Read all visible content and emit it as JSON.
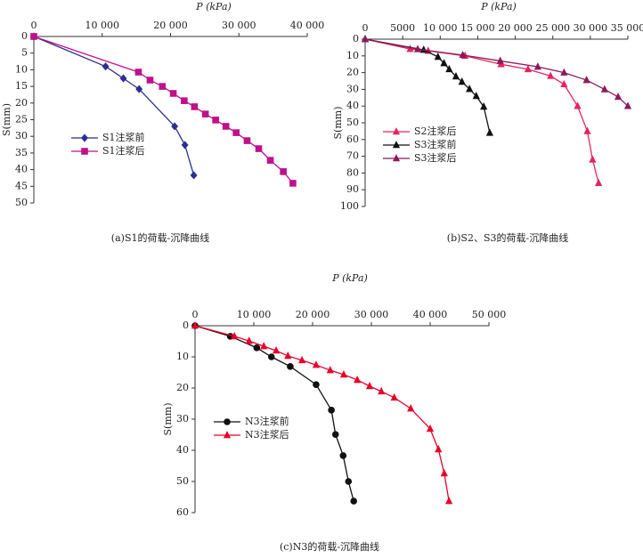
{
  "chart_data": [
    {
      "type": "line",
      "xlabel": "P (kPa)",
      "ylabel": "S(mm)",
      "caption": "(a)S1的荷载-沉降曲线",
      "x_axis_position": "top",
      "y_inverted": true,
      "legend": "middle left",
      "xlim": [
        0,
        40000
      ],
      "xticks": [
        0,
        {
          "value": 10000,
          "label": "10 000"
        },
        {
          "value": 20000,
          "label": "20 000"
        },
        {
          "value": 30000,
          "label": "30 000"
        },
        {
          "value": 40000,
          "label": "40 000"
        }
      ],
      "ylim": [
        0,
        50
      ],
      "yticks": [
        0,
        5,
        10,
        15,
        20,
        25,
        30,
        35,
        40,
        45,
        50
      ],
      "series": [
        {
          "name": "S1注浆前",
          "color": "#2b2f8f",
          "marker": "diamond",
          "x": [
            0,
            10500,
            13100,
            15400,
            20600,
            22100,
            23400
          ],
          "values": [
            0,
            9,
            12.6,
            15.8,
            27,
            32.6,
            41.7
          ]
        },
        {
          "name": "S1注浆后",
          "color": "#c0108a",
          "marker": "square",
          "x": [
            0,
            15300,
            17000,
            18800,
            20400,
            22000,
            23500,
            25100,
            26600,
            28100,
            29600,
            31200,
            32900,
            34600,
            36500,
            37900
          ],
          "values": [
            0,
            10.7,
            13.1,
            15,
            17.1,
            19.3,
            21.1,
            23.3,
            25.1,
            27,
            28.9,
            31.3,
            33.7,
            37.2,
            40.6,
            44.1
          ]
        }
      ]
    },
    {
      "type": "line",
      "xlabel": "P (kPa)",
      "ylabel": "S(mm)",
      "caption": "(b)S2、S3的荷载-沉降曲线",
      "x_axis_position": "top",
      "y_inverted": true,
      "legend": "lower left",
      "xlim": [
        0,
        35000
      ],
      "xticks": [
        0,
        5000,
        {
          "value": 10000,
          "label": "10 000"
        },
        {
          "value": 15000,
          "label": "15 000"
        },
        {
          "value": 20000,
          "label": "20 000"
        },
        {
          "value": 25000,
          "label": "25 000"
        },
        {
          "value": 30000,
          "label": "30 000"
        },
        {
          "value": 35000,
          "label": "35 000"
        }
      ],
      "ylim": [
        0,
        100
      ],
      "yticks": [
        0,
        10,
        20,
        30,
        40,
        50,
        60,
        70,
        80,
        90,
        100
      ],
      "series": [
        {
          "name": "S2注浆后",
          "color": "#e6245e",
          "marker": "triangle",
          "x": [
            0,
            6000,
            8400,
            13300,
            18100,
            21700,
            24700,
            26500,
            28300,
            29600,
            30300,
            31100
          ],
          "values": [
            0,
            5.9,
            7,
            10,
            15,
            18,
            22,
            27,
            40,
            55,
            72,
            86
          ]
        },
        {
          "name": "S3注浆前",
          "color": "#111111",
          "marker": "triangle",
          "x": [
            0,
            7800,
            9700,
            10500,
            11200,
            12100,
            12900,
            13900,
            14800,
            15800,
            16600
          ],
          "values": [
            0,
            6.4,
            10.6,
            14.4,
            18,
            22.3,
            25.5,
            29.8,
            34,
            40.4,
            56
          ]
        },
        {
          "name": "S3注浆后",
          "color": "#8b1a5a",
          "marker": "triangle",
          "x": [
            0,
            7000,
            13000,
            18000,
            23000,
            26500,
            29500,
            31900,
            33700,
            35000
          ],
          "values": [
            0,
            6,
            9.5,
            13,
            16.5,
            20,
            24.5,
            30,
            34.5,
            40
          ]
        }
      ]
    },
    {
      "type": "line",
      "xlabel": "P (kPa)",
      "ylabel": "S(mm)",
      "caption": "(c)N3的荷载-沉降曲线",
      "x_axis_position": "top",
      "y_inverted": true,
      "legend": "lower left",
      "xlim": [
        0,
        50000
      ],
      "xticks": [
        0,
        {
          "value": 10000,
          "label": "10 000"
        },
        {
          "value": 20000,
          "label": "20 000"
        },
        {
          "value": 30000,
          "label": "30 000"
        },
        {
          "value": 40000,
          "label": "40 000"
        },
        {
          "value": 50000,
          "label": "50 000"
        }
      ],
      "ylim": [
        0,
        60
      ],
      "yticks": [
        0,
        10,
        20,
        30,
        40,
        50,
        60
      ],
      "series": [
        {
          "name": "N3注浆前",
          "color": "#111111",
          "marker": "circle",
          "x": [
            0,
            6000,
            10500,
            13000,
            16200,
            20600,
            23200,
            23900,
            25200,
            26100,
            27000
          ],
          "values": [
            0,
            3.4,
            7.1,
            10,
            13.1,
            18.9,
            27.1,
            34.9,
            41.7,
            50,
            56.3
          ]
        },
        {
          "name": "N3注浆后",
          "color": "#e8002a",
          "marker": "triangle",
          "x": [
            0,
            6700,
            9200,
            11700,
            13800,
            15800,
            18200,
            20600,
            23000,
            25300,
            27600,
            29700,
            31700,
            33900,
            36700,
            40000,
            41400,
            42400,
            43200
          ],
          "values": [
            0,
            3.4,
            4.9,
            6.6,
            8,
            9.7,
            11.1,
            12.6,
            14.3,
            15.7,
            17.4,
            19.4,
            21.1,
            23.1,
            26.6,
            33.1,
            39.7,
            47.4,
            56.3
          ]
        }
      ]
    }
  ]
}
